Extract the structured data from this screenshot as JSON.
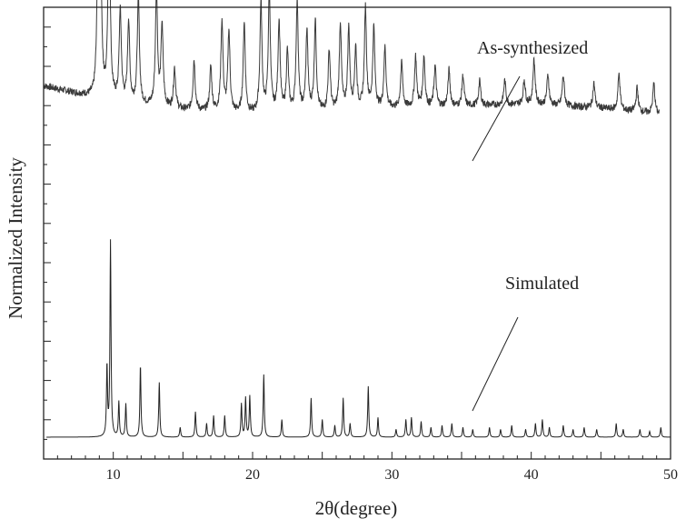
{
  "chart_data": {
    "type": "line",
    "title": "",
    "xlabel": "2θ(degree)",
    "ylabel": "Normalized Intensity",
    "xlim": [
      5,
      50
    ],
    "xticks": [
      10,
      20,
      30,
      40,
      50
    ],
    "x_tick_labels": [
      "10",
      "20",
      "30",
      "40",
      "50"
    ],
    "grid": false,
    "legend": "none",
    "series": [
      {
        "name": "As-synthesized",
        "color": "#3a3a3a",
        "baseline": [
          [
            5,
            0.7
          ],
          [
            10,
            0.62
          ],
          [
            15,
            0.58
          ],
          [
            20,
            0.56
          ],
          [
            25,
            0.57
          ],
          [
            30,
            0.59
          ],
          [
            35,
            0.6
          ],
          [
            40,
            0.61
          ],
          [
            45,
            0.59
          ],
          [
            49.2,
            0.56
          ]
        ],
        "peaks": [
          [
            8.9,
            0.72
          ],
          [
            9.1,
            0.6
          ],
          [
            9.7,
            1.0
          ],
          [
            10.5,
            0.45
          ],
          [
            11.1,
            0.4
          ],
          [
            11.8,
            0.53
          ],
          [
            13.1,
            0.58
          ],
          [
            13.5,
            0.4
          ],
          [
            14.4,
            0.2
          ],
          [
            15.8,
            0.25
          ],
          [
            17.0,
            0.22
          ],
          [
            17.8,
            0.45
          ],
          [
            18.3,
            0.4
          ],
          [
            19.4,
            0.45
          ],
          [
            20.6,
            0.55
          ],
          [
            21.2,
            0.6
          ],
          [
            21.9,
            0.45
          ],
          [
            22.5,
            0.3
          ],
          [
            23.2,
            0.55
          ],
          [
            23.9,
            0.4
          ],
          [
            24.5,
            0.45
          ],
          [
            25.5,
            0.3
          ],
          [
            26.3,
            0.43
          ],
          [
            26.9,
            0.4
          ],
          [
            27.4,
            0.3
          ],
          [
            28.1,
            0.5
          ],
          [
            28.7,
            0.4
          ],
          [
            29.5,
            0.3
          ],
          [
            30.7,
            0.22
          ],
          [
            31.7,
            0.25
          ],
          [
            32.3,
            0.25
          ],
          [
            33.1,
            0.2
          ],
          [
            34.1,
            0.18
          ],
          [
            35.1,
            0.15
          ],
          [
            36.3,
            0.12
          ],
          [
            38.1,
            0.12
          ],
          [
            39.5,
            0.12
          ],
          [
            40.2,
            0.22
          ],
          [
            41.2,
            0.15
          ],
          [
            42.3,
            0.15
          ],
          [
            44.5,
            0.12
          ],
          [
            46.3,
            0.18
          ],
          [
            47.6,
            0.12
          ],
          [
            48.8,
            0.15
          ]
        ]
      },
      {
        "name": "Simulated",
        "color": "#222222",
        "baseline": [
          [
            5,
            0
          ],
          [
            50,
            0
          ]
        ],
        "peaks": [
          [
            9.55,
            0.36
          ],
          [
            9.8,
            1.0
          ],
          [
            10.4,
            0.18
          ],
          [
            10.9,
            0.17
          ],
          [
            11.95,
            0.37
          ],
          [
            13.3,
            0.28
          ],
          [
            14.8,
            0.05
          ],
          [
            15.9,
            0.13
          ],
          [
            16.7,
            0.07
          ],
          [
            17.2,
            0.11
          ],
          [
            18.0,
            0.11
          ],
          [
            19.2,
            0.17
          ],
          [
            19.5,
            0.2
          ],
          [
            19.8,
            0.21
          ],
          [
            20.8,
            0.32
          ],
          [
            22.1,
            0.09
          ],
          [
            24.2,
            0.2
          ],
          [
            25.0,
            0.09
          ],
          [
            25.9,
            0.06
          ],
          [
            26.5,
            0.2
          ],
          [
            27.0,
            0.07
          ],
          [
            28.3,
            0.26
          ],
          [
            29.0,
            0.1
          ],
          [
            30.3,
            0.04
          ],
          [
            31.0,
            0.09
          ],
          [
            31.4,
            0.1
          ],
          [
            32.1,
            0.08
          ],
          [
            32.8,
            0.05
          ],
          [
            33.6,
            0.06
          ],
          [
            34.3,
            0.07
          ],
          [
            35.1,
            0.05
          ],
          [
            35.8,
            0.04
          ],
          [
            37.0,
            0.05
          ],
          [
            37.8,
            0.04
          ],
          [
            38.6,
            0.06
          ],
          [
            39.6,
            0.04
          ],
          [
            40.3,
            0.07
          ],
          [
            40.8,
            0.09
          ],
          [
            41.3,
            0.05
          ],
          [
            42.3,
            0.06
          ],
          [
            43.0,
            0.04
          ],
          [
            43.8,
            0.05
          ],
          [
            44.7,
            0.04
          ],
          [
            46.1,
            0.07
          ],
          [
            46.6,
            0.04
          ],
          [
            47.8,
            0.04
          ],
          [
            48.5,
            0.03
          ],
          [
            49.3,
            0.05
          ]
        ]
      }
    ]
  }
}
